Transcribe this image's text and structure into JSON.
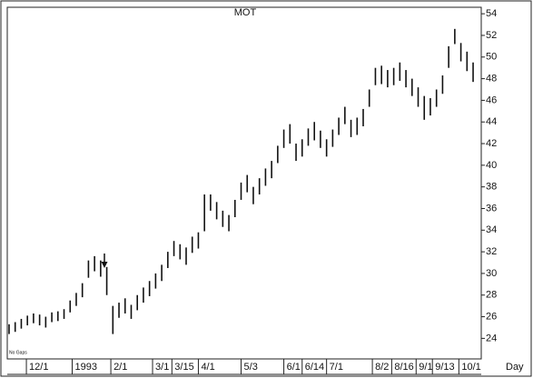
{
  "chart_data": {
    "type": "ohlc",
    "title": "MOT",
    "note": "No Gaps",
    "x_label": "Day",
    "x": [
      0,
      3,
      6,
      9,
      12,
      15,
      18,
      21,
      24,
      27,
      30,
      33,
      36,
      39,
      42,
      45,
      48,
      51,
      54,
      57,
      60,
      63,
      66,
      69,
      72,
      75,
      78,
      81,
      84,
      87,
      90,
      93,
      96,
      99,
      102,
      105,
      108,
      111,
      114,
      117,
      120,
      123,
      126,
      129,
      132,
      135,
      138,
      141,
      144,
      147,
      150,
      153,
      156,
      159,
      162,
      165,
      168,
      171,
      174,
      177,
      180,
      183,
      186,
      189,
      192,
      195,
      198,
      201,
      204,
      207,
      210,
      213,
      216,
      219,
      222,
      225,
      228
    ],
    "high": [
      25.3,
      25.5,
      25.8,
      26.1,
      26.3,
      26.2,
      26.0,
      26.4,
      26.5,
      26.7,
      27.5,
      28.2,
      29.1,
      31.2,
      31.6,
      31.2,
      30.6,
      27.0,
      27.3,
      27.7,
      27.1,
      28.0,
      28.7,
      29.3,
      30.0,
      30.8,
      32.0,
      33.0,
      32.7,
      32.4,
      33.4,
      33.8,
      37.3,
      37.3,
      36.6,
      35.8,
      35.4,
      36.8,
      38.4,
      39.1,
      38.0,
      38.8,
      39.7,
      40.4,
      41.8,
      43.3,
      43.8,
      42.0,
      42.4,
      43.4,
      44.0,
      43.2,
      42.4,
      43.3,
      44.4,
      45.4,
      44.2,
      44.4,
      45.2,
      47.0,
      49.0,
      49.2,
      48.8,
      49.0,
      49.5,
      48.8,
      48.0,
      47.2,
      46.4,
      46.2,
      47.0,
      48.3,
      51.0,
      52.6,
      51.3,
      50.5,
      49.5
    ],
    "low": [
      24.4,
      24.6,
      24.9,
      25.2,
      25.4,
      25.2,
      25.0,
      25.5,
      25.6,
      25.8,
      26.4,
      27.0,
      27.8,
      29.6,
      30.2,
      29.7,
      28.0,
      24.4,
      25.9,
      26.3,
      25.8,
      26.6,
      27.3,
      27.9,
      28.6,
      29.3,
      30.5,
      31.6,
      31.3,
      30.8,
      31.9,
      32.3,
      33.9,
      35.8,
      35.0,
      34.3,
      33.9,
      35.2,
      36.8,
      37.5,
      36.4,
      37.3,
      38.1,
      38.8,
      40.2,
      41.6,
      42.0,
      40.4,
      40.8,
      41.8,
      42.3,
      41.6,
      40.8,
      41.7,
      42.8,
      43.8,
      42.6,
      42.8,
      43.6,
      45.4,
      47.4,
      47.5,
      47.2,
      47.4,
      47.8,
      47.2,
      46.4,
      45.4,
      44.2,
      44.6,
      45.4,
      46.6,
      49.0,
      51.2,
      49.6,
      48.7,
      47.7
    ],
    "color": "#111111",
    "xlim": [
      0,
      232
    ],
    "xticks": [
      {
        "value": 8.5,
        "label": "12/1"
      },
      {
        "value": 31,
        "label": "1993"
      },
      {
        "value": 50,
        "label": "2/1"
      },
      {
        "value": 70.5,
        "label": "3/1"
      },
      {
        "value": 80,
        "label": "3/15"
      },
      {
        "value": 93,
        "label": "4/1"
      },
      {
        "value": 114,
        "label": "5/3"
      },
      {
        "value": 135,
        "label": "6/1"
      },
      {
        "value": 144,
        "label": "6/14"
      },
      {
        "value": 156,
        "label": "7/1"
      },
      {
        "value": 178.5,
        "label": "8/2"
      },
      {
        "value": 188,
        "label": "8/16"
      },
      {
        "value": 200,
        "label": "9/1"
      },
      {
        "value": 208,
        "label": "9/13"
      },
      {
        "value": 221,
        "label": "10/1"
      }
    ],
    "ylim": [
      22.1,
      54.6
    ],
    "yticks": [
      24,
      26,
      28,
      30,
      32,
      34,
      36,
      38,
      40,
      42,
      44,
      46,
      48,
      50,
      52,
      54
    ]
  }
}
